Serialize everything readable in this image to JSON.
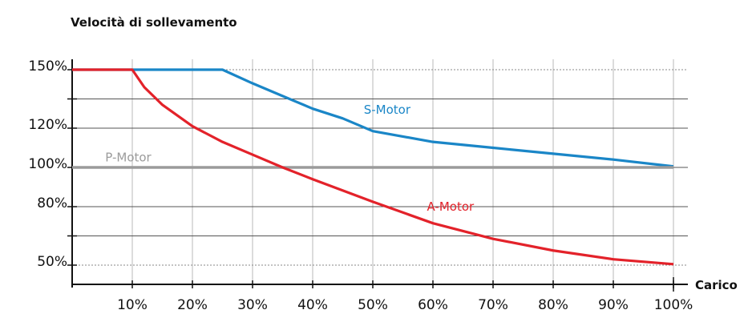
{
  "chart_data": {
    "type": "line",
    "title": "Velocità di sollevamento",
    "xlabel": "Carico",
    "ylabel": "",
    "xlim": [
      0,
      100
    ],
    "ylim": [
      50,
      150
    ],
    "x_ticks": [
      "10%",
      "20%",
      "30%",
      "40%",
      "50%",
      "60%",
      "70%",
      "80%",
      "90%",
      "100%"
    ],
    "y_ticks": [
      {
        "label": "150%",
        "value": 150
      },
      {
        "label": "120%",
        "value": 120
      },
      {
        "label": "100%",
        "value": 100
      },
      {
        "label": "80%",
        "value": 80
      },
      {
        "label": "50%",
        "value": 50
      }
    ],
    "dotted_lines": [
      150,
      50
    ],
    "grid": true,
    "series": [
      {
        "name": "S-Motor",
        "color": "#1a86c7",
        "x": [
          0,
          25,
          30,
          35,
          40,
          45,
          50,
          60,
          70,
          80,
          90,
          100
        ],
        "y": [
          150,
          150,
          143,
          136.5,
          130,
          125,
          118.5,
          113,
          110,
          107,
          104,
          100.5
        ]
      },
      {
        "name": "P-Motor",
        "color": "#9b9b9b",
        "x": [
          0,
          100
        ],
        "y": [
          100,
          100
        ]
      },
      {
        "name": "A-Motor",
        "color": "#e3222a",
        "x": [
          0,
          10,
          12,
          15,
          20,
          25,
          30,
          35,
          40,
          50,
          60,
          70,
          80,
          90,
          100
        ],
        "y": [
          150,
          150,
          141,
          132,
          121,
          113,
          106.5,
          100,
          94,
          82.5,
          71.5,
          63.5,
          57.5,
          53,
          50.5
        ]
      }
    ]
  }
}
